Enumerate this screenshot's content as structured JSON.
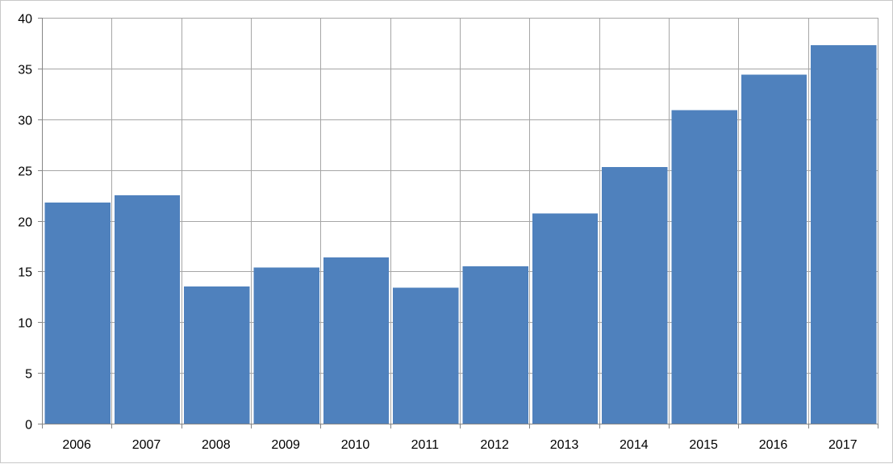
{
  "chart_data": {
    "type": "bar",
    "title": "",
    "xlabel": "",
    "ylabel": "",
    "categories": [
      "2006",
      "2007",
      "2008",
      "2009",
      "2010",
      "2011",
      "2012",
      "2013",
      "2014",
      "2015",
      "2016",
      "2017"
    ],
    "values": [
      21.8,
      22.5,
      13.5,
      15.4,
      16.4,
      13.4,
      15.5,
      20.7,
      25.3,
      30.9,
      34.4,
      37.3
    ],
    "ylim": [
      0,
      40
    ],
    "yticks": [
      0,
      5,
      10,
      15,
      20,
      25,
      30,
      35,
      40
    ],
    "grid": true,
    "legend": "none",
    "bar_color": "#4f81bd"
  }
}
